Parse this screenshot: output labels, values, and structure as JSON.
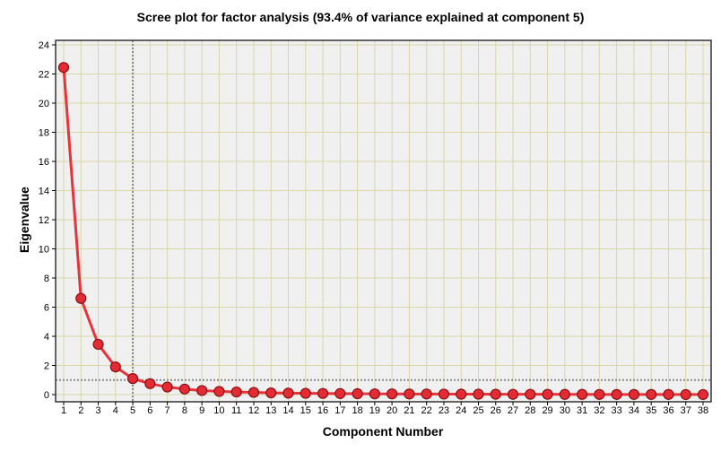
{
  "chart_data": {
    "type": "line",
    "title": "Scree plot for factor analysis (93.4% of variance explained at component 5)",
    "xlabel": "Component Number",
    "ylabel": "Eigenvalue",
    "ylim": [
      0,
      24
    ],
    "yticks": [
      0,
      2,
      4,
      6,
      8,
      10,
      12,
      14,
      16,
      18,
      20,
      22,
      24
    ],
    "x": [
      1,
      2,
      3,
      4,
      5,
      6,
      7,
      8,
      9,
      10,
      11,
      12,
      13,
      14,
      15,
      16,
      17,
      18,
      19,
      20,
      21,
      22,
      23,
      24,
      25,
      26,
      27,
      28,
      29,
      30,
      31,
      32,
      33,
      34,
      35,
      36,
      37,
      38
    ],
    "series": [
      {
        "name": "Eigenvalue",
        "values": [
          22.45,
          6.6,
          3.45,
          1.9,
          1.1,
          0.75,
          0.52,
          0.38,
          0.28,
          0.22,
          0.18,
          0.15,
          0.12,
          0.1,
          0.09,
          0.08,
          0.07,
          0.06,
          0.05,
          0.05,
          0.04,
          0.04,
          0.035,
          0.03,
          0.03,
          0.025,
          0.02,
          0.02,
          0.02,
          0.015,
          0.015,
          0.01,
          0.01,
          0.01,
          0.01,
          0.01,
          0.005,
          0.005
        ]
      }
    ],
    "reference_lines": {
      "vertical_x": 5,
      "horizontal_y": 1
    },
    "grid": true,
    "colors": {
      "line": "#e8333a",
      "marker_fill": "#e32b33",
      "marker_stroke": "#8a1016",
      "grid": "#d9d6a8",
      "plot_bg": "#f0f0f0",
      "ref_line": "#8c8c8c"
    }
  }
}
